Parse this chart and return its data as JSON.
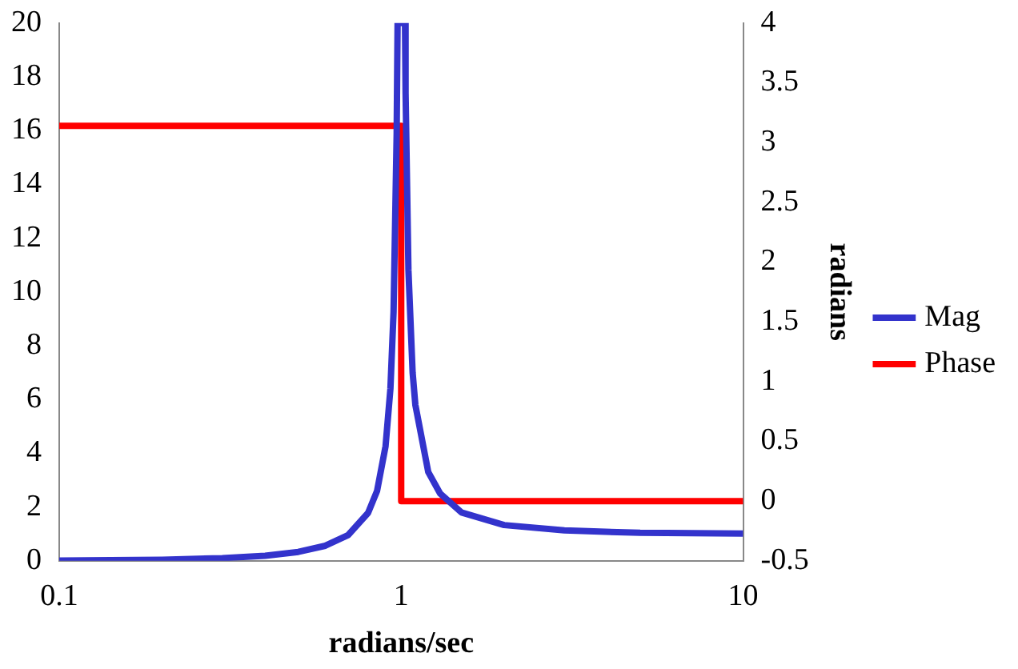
{
  "chart_data": {
    "type": "line",
    "xlabel": "radians/sec",
    "y2label": "radians",
    "log": "x",
    "xlim": [
      0.1,
      10
    ],
    "xticks": [
      0.1,
      1,
      10
    ],
    "ylim": [
      0,
      20
    ],
    "yticks": [
      0,
      2,
      4,
      6,
      8,
      10,
      12,
      14,
      16,
      18,
      20
    ],
    "y2lim": [
      -0.5,
      4
    ],
    "y2ticks": [
      -0.5,
      0,
      0.5,
      1,
      1.5,
      2,
      2.5,
      3,
      3.5,
      4
    ],
    "grid": false,
    "legend": "right",
    "marker": "none",
    "line_style": "solid",
    "series": [
      {
        "name": "Mag",
        "color": "#3333cc",
        "x": [
          0.1,
          0.2,
          0.3,
          0.4,
          0.5,
          0.6,
          0.7,
          0.8,
          0.85,
          0.9,
          0.93,
          0.95,
          0.97,
          0.976,
          1.026,
          1.03,
          1.05,
          1.08,
          1.1,
          1.2,
          1.3,
          1.5,
          2,
          3,
          5,
          10
        ],
        "values": [
          0.01,
          0.04,
          0.1,
          0.19,
          0.33,
          0.56,
          0.96,
          1.78,
          2.6,
          4.26,
          6.4,
          9.26,
          15.9,
          20,
          20,
          17.4,
          10.8,
          7,
          5.8,
          3.3,
          2.5,
          1.8,
          1.33,
          1.13,
          1.04,
          1.01
        ]
      },
      {
        "name": "Phase",
        "color": "#ff0000",
        "axis": "y2",
        "x": [
          0.1,
          1,
          1,
          10
        ],
        "values": [
          3.14,
          3.14,
          0,
          0
        ]
      }
    ]
  }
}
